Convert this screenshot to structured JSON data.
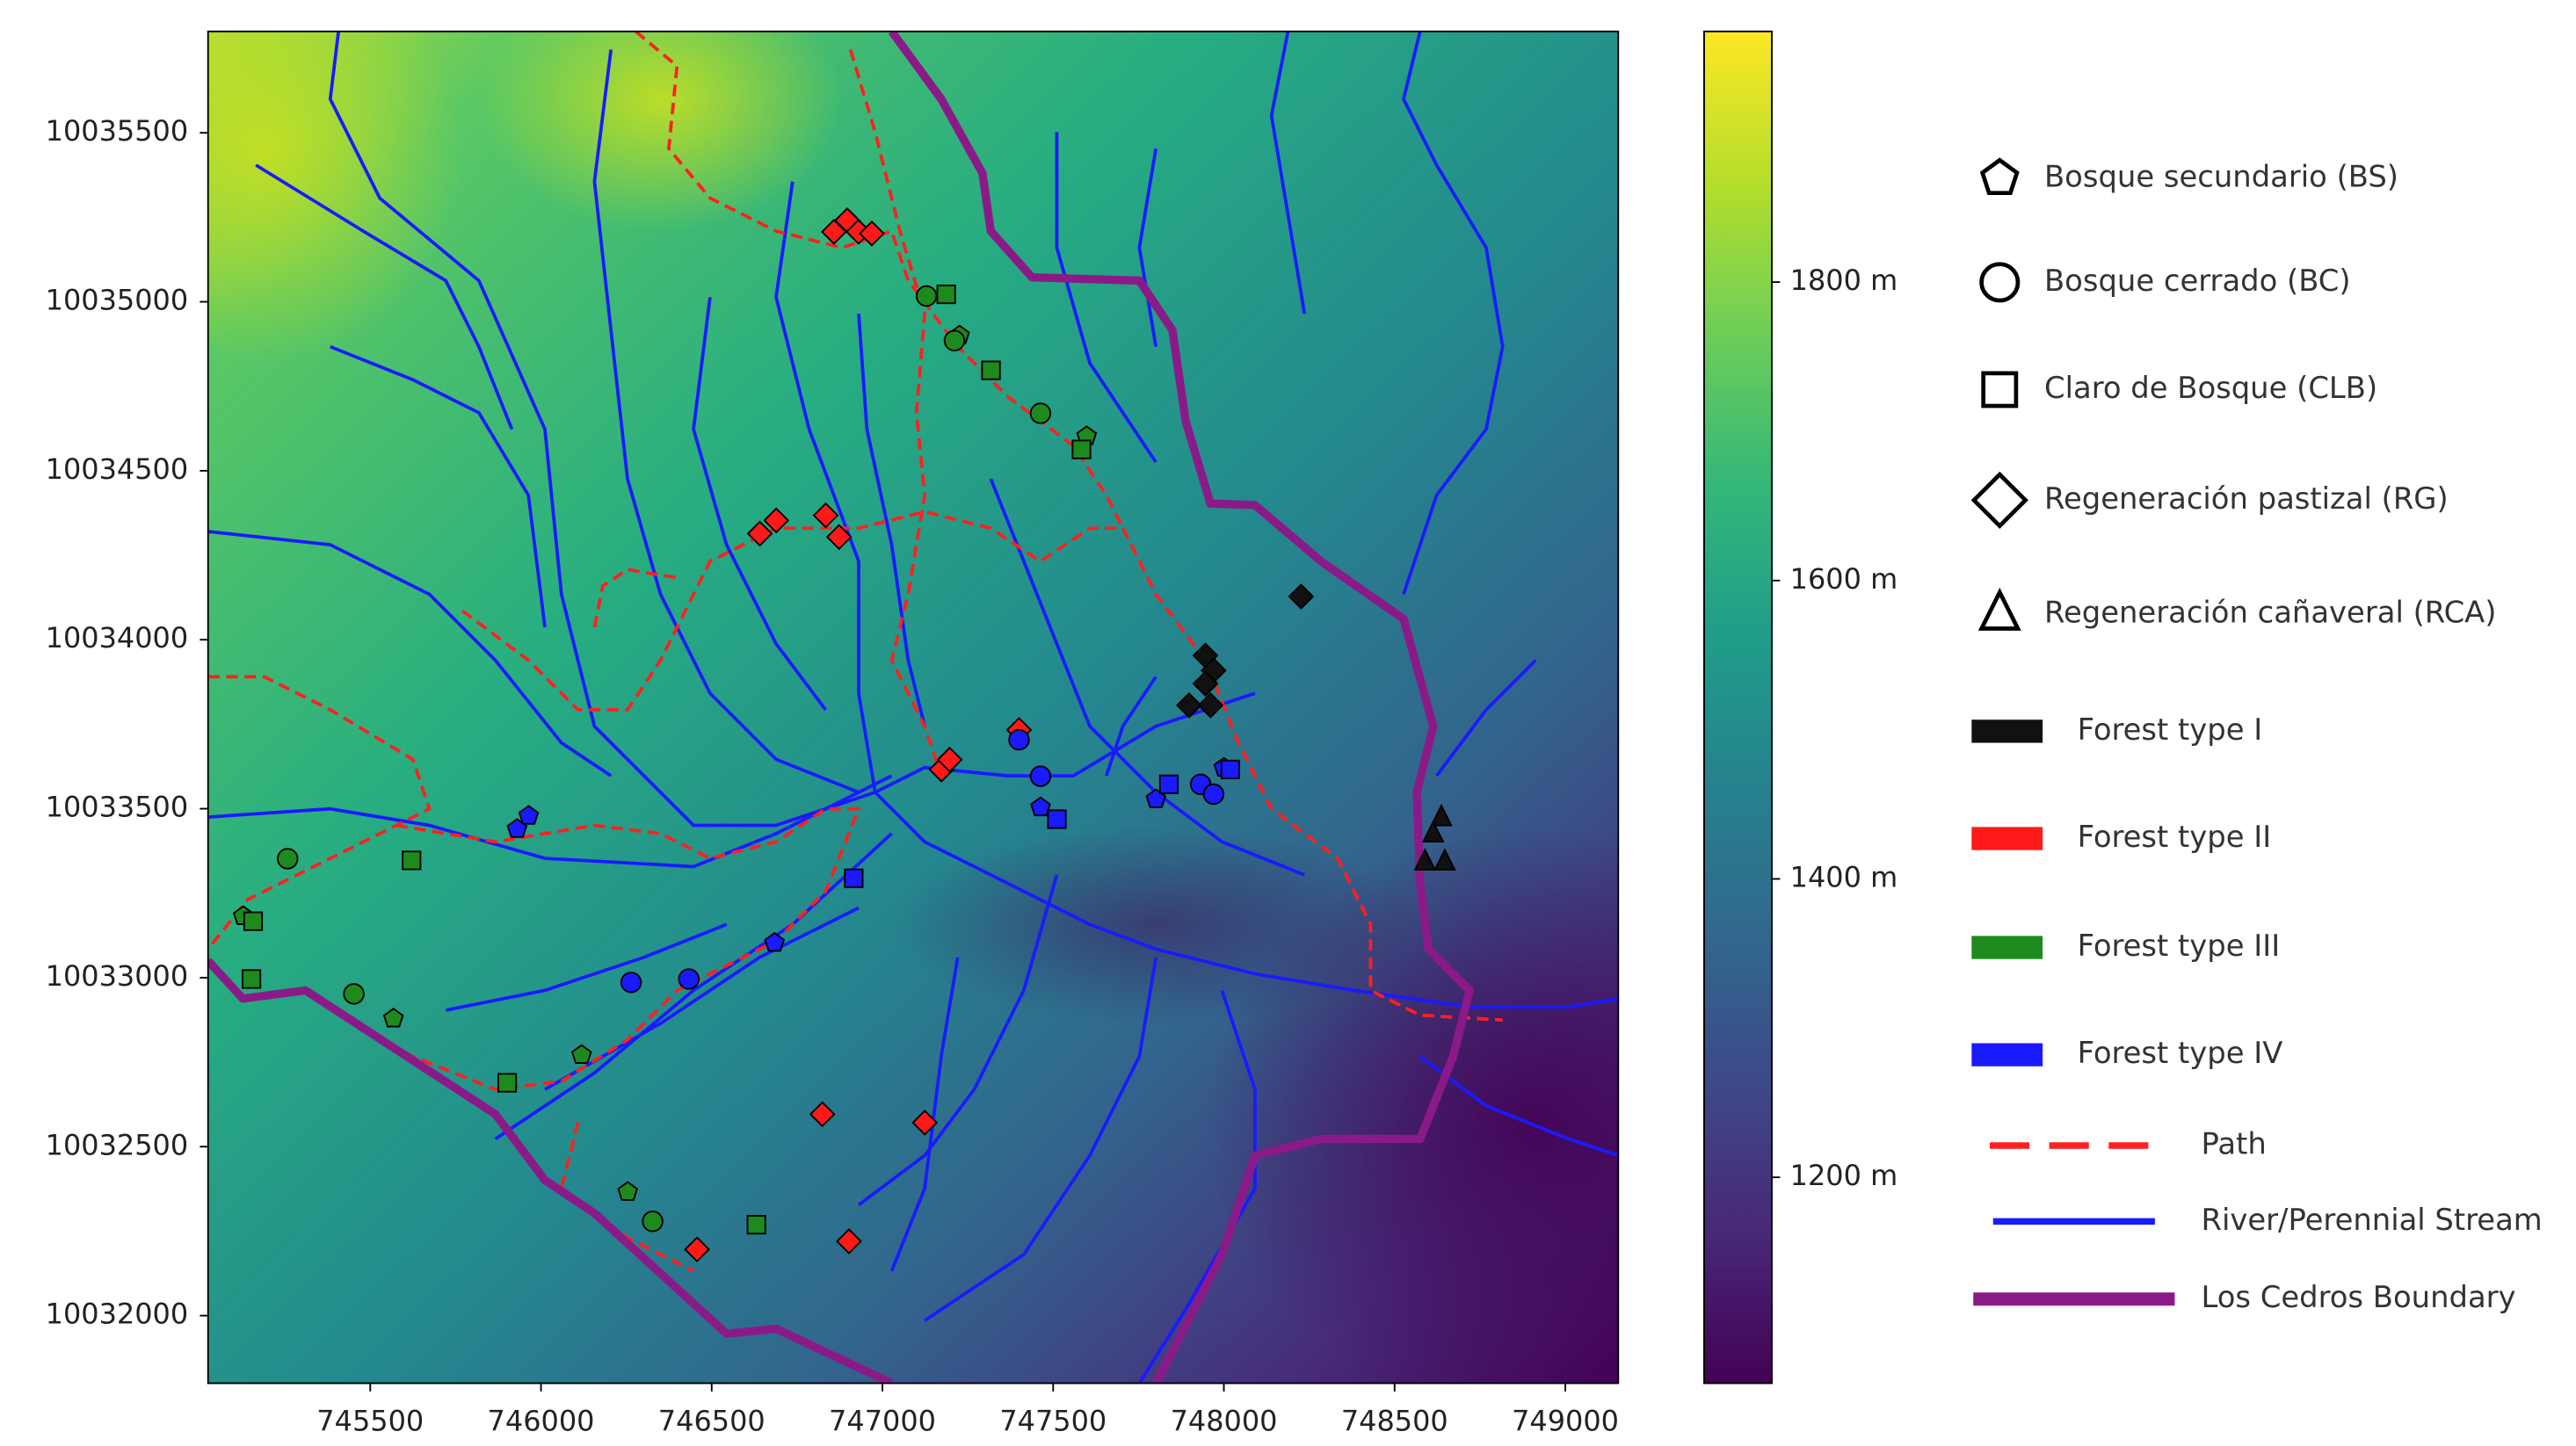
{
  "chart_data": {
    "type": "scatter",
    "xlim": [
      745025,
      749155
    ],
    "ylim": [
      10031800,
      10035800
    ],
    "xticks": [
      745500,
      746000,
      746500,
      747000,
      747500,
      748000,
      748500,
      749000
    ],
    "yticks": [
      10032000,
      10032500,
      10033000,
      10033500,
      10034000,
      10034500,
      10035000,
      10035500
    ],
    "colorbar": {
      "lim": [
        1062,
        1968
      ],
      "colormap": [
        "#440154",
        "#482878",
        "#3e4989",
        "#31688e",
        "#26828e",
        "#1f9e89",
        "#35b779",
        "#6ece58",
        "#b5de2b",
        "#fde725"
      ],
      "ticks": [
        {
          "value": 1200,
          "label": "1200 m"
        },
        {
          "value": 1400,
          "label": "1400 m"
        },
        {
          "value": 1600,
          "label": "1600 m"
        },
        {
          "value": 1800,
          "label": "1800 m"
        }
      ]
    },
    "site_legend": [
      {
        "label": "Bosque secundario (BS)",
        "marker": "pentagon"
      },
      {
        "label": "Bosque cerrado (BC)",
        "marker": "circle"
      },
      {
        "label": "Claro de Bosque (CLB)",
        "marker": "square"
      },
      {
        "label": "Regeneración pastizal (RG)",
        "marker": "diamond"
      },
      {
        "label": "Regeneración cañaveral (RCA)",
        "marker": "triangle"
      }
    ],
    "series": [
      {
        "name": "Forest type I",
        "color": "#111111",
        "points": [
          {
            "x": 748226,
            "y": 10034128,
            "marker": "diamond"
          },
          {
            "x": 747946,
            "y": 10033953,
            "marker": "diamond"
          },
          {
            "x": 747970,
            "y": 10033909,
            "marker": "diamond"
          },
          {
            "x": 747946,
            "y": 10033870,
            "marker": "diamond"
          },
          {
            "x": 747898,
            "y": 10033806,
            "marker": "diamond"
          },
          {
            "x": 747961,
            "y": 10033806,
            "marker": "diamond"
          },
          {
            "x": 748637,
            "y": 10033474,
            "marker": "triangle"
          },
          {
            "x": 748613,
            "y": 10033426,
            "marker": "triangle"
          },
          {
            "x": 748647,
            "y": 10033343,
            "marker": "triangle"
          },
          {
            "x": 748589,
            "y": 10033343,
            "marker": "triangle"
          }
        ]
      },
      {
        "name": "Forest type II",
        "color": "#ff1a1a",
        "points": [
          {
            "x": 746858,
            "y": 10035207,
            "marker": "diamond"
          },
          {
            "x": 746897,
            "y": 10035241,
            "marker": "diamond"
          },
          {
            "x": 746930,
            "y": 10035207,
            "marker": "diamond"
          },
          {
            "x": 746969,
            "y": 10035202,
            "marker": "diamond"
          },
          {
            "x": 746641,
            "y": 10034314,
            "marker": "diamond"
          },
          {
            "x": 746689,
            "y": 10034353,
            "marker": "diamond"
          },
          {
            "x": 746834,
            "y": 10034368,
            "marker": "diamond"
          },
          {
            "x": 746873,
            "y": 10034304,
            "marker": "diamond"
          },
          {
            "x": 747400,
            "y": 10033733,
            "marker": "diamond"
          },
          {
            "x": 747173,
            "y": 10033616,
            "marker": "diamond"
          },
          {
            "x": 747197,
            "y": 10033645,
            "marker": "diamond"
          },
          {
            "x": 746824,
            "y": 10032596,
            "marker": "diamond"
          },
          {
            "x": 747124,
            "y": 10032571,
            "marker": "diamond"
          },
          {
            "x": 746457,
            "y": 10032196,
            "marker": "diamond"
          },
          {
            "x": 746902,
            "y": 10032220,
            "marker": "diamond"
          }
        ]
      },
      {
        "name": "Forest type III",
        "color": "#1e8a1e",
        "points": [
          {
            "x": 747129,
            "y": 10035017,
            "marker": "circle"
          },
          {
            "x": 747187,
            "y": 10035022,
            "marker": "square"
          },
          {
            "x": 747226,
            "y": 10034900,
            "marker": "pentagon"
          },
          {
            "x": 747211,
            "y": 10034885,
            "marker": "circle"
          },
          {
            "x": 747318,
            "y": 10034797,
            "marker": "square"
          },
          {
            "x": 747463,
            "y": 10034670,
            "marker": "circle"
          },
          {
            "x": 747598,
            "y": 10034602,
            "marker": "pentagon"
          },
          {
            "x": 747583,
            "y": 10034563,
            "marker": "square"
          },
          {
            "x": 745258,
            "y": 10033352,
            "marker": "circle"
          },
          {
            "x": 745621,
            "y": 10033347,
            "marker": "square"
          },
          {
            "x": 745128,
            "y": 10033182,
            "marker": "pentagon"
          },
          {
            "x": 745157,
            "y": 10033167,
            "marker": "square"
          },
          {
            "x": 745152,
            "y": 10032996,
            "marker": "square"
          },
          {
            "x": 745452,
            "y": 10032952,
            "marker": "circle"
          },
          {
            "x": 745568,
            "y": 10032879,
            "marker": "pentagon"
          },
          {
            "x": 746119,
            "y": 10032771,
            "marker": "pentagon"
          },
          {
            "x": 745901,
            "y": 10032689,
            "marker": "square"
          },
          {
            "x": 746254,
            "y": 10032366,
            "marker": "pentagon"
          },
          {
            "x": 746327,
            "y": 10032279,
            "marker": "circle"
          },
          {
            "x": 746631,
            "y": 10032269,
            "marker": "square"
          }
        ]
      },
      {
        "name": "Forest type IV",
        "color": "#1a1aff",
        "points": [
          {
            "x": 745964,
            "y": 10033479,
            "marker": "pentagon"
          },
          {
            "x": 745930,
            "y": 10033440,
            "marker": "pentagon"
          },
          {
            "x": 746264,
            "y": 10032986,
            "marker": "circle"
          },
          {
            "x": 746433,
            "y": 10032996,
            "marker": "circle"
          },
          {
            "x": 746684,
            "y": 10033103,
            "marker": "pentagon"
          },
          {
            "x": 746916,
            "y": 10033294,
            "marker": "square"
          },
          {
            "x": 747400,
            "y": 10033704,
            "marker": "circle"
          },
          {
            "x": 747463,
            "y": 10033596,
            "marker": "circle"
          },
          {
            "x": 747463,
            "y": 10033504,
            "marker": "pentagon"
          },
          {
            "x": 747511,
            "y": 10033469,
            "marker": "square"
          },
          {
            "x": 747801,
            "y": 10033528,
            "marker": "pentagon"
          },
          {
            "x": 747839,
            "y": 10033572,
            "marker": "square"
          },
          {
            "x": 747932,
            "y": 10033572,
            "marker": "circle"
          },
          {
            "x": 747970,
            "y": 10033543,
            "marker": "circle"
          },
          {
            "x": 748000,
            "y": 10033621,
            "marker": "pentagon"
          },
          {
            "x": 748019,
            "y": 10033616,
            "marker": "square"
          }
        ]
      }
    ],
    "line_legend": [
      {
        "name": "Path",
        "color": "#ff2020",
        "style": "dashed"
      },
      {
        "name": "River/Perennial Stream",
        "color": "#1a1aff",
        "style": "solid"
      },
      {
        "name": "Los Cedros Boundary",
        "color": "#8b1a89",
        "style": "thick"
      }
    ]
  }
}
